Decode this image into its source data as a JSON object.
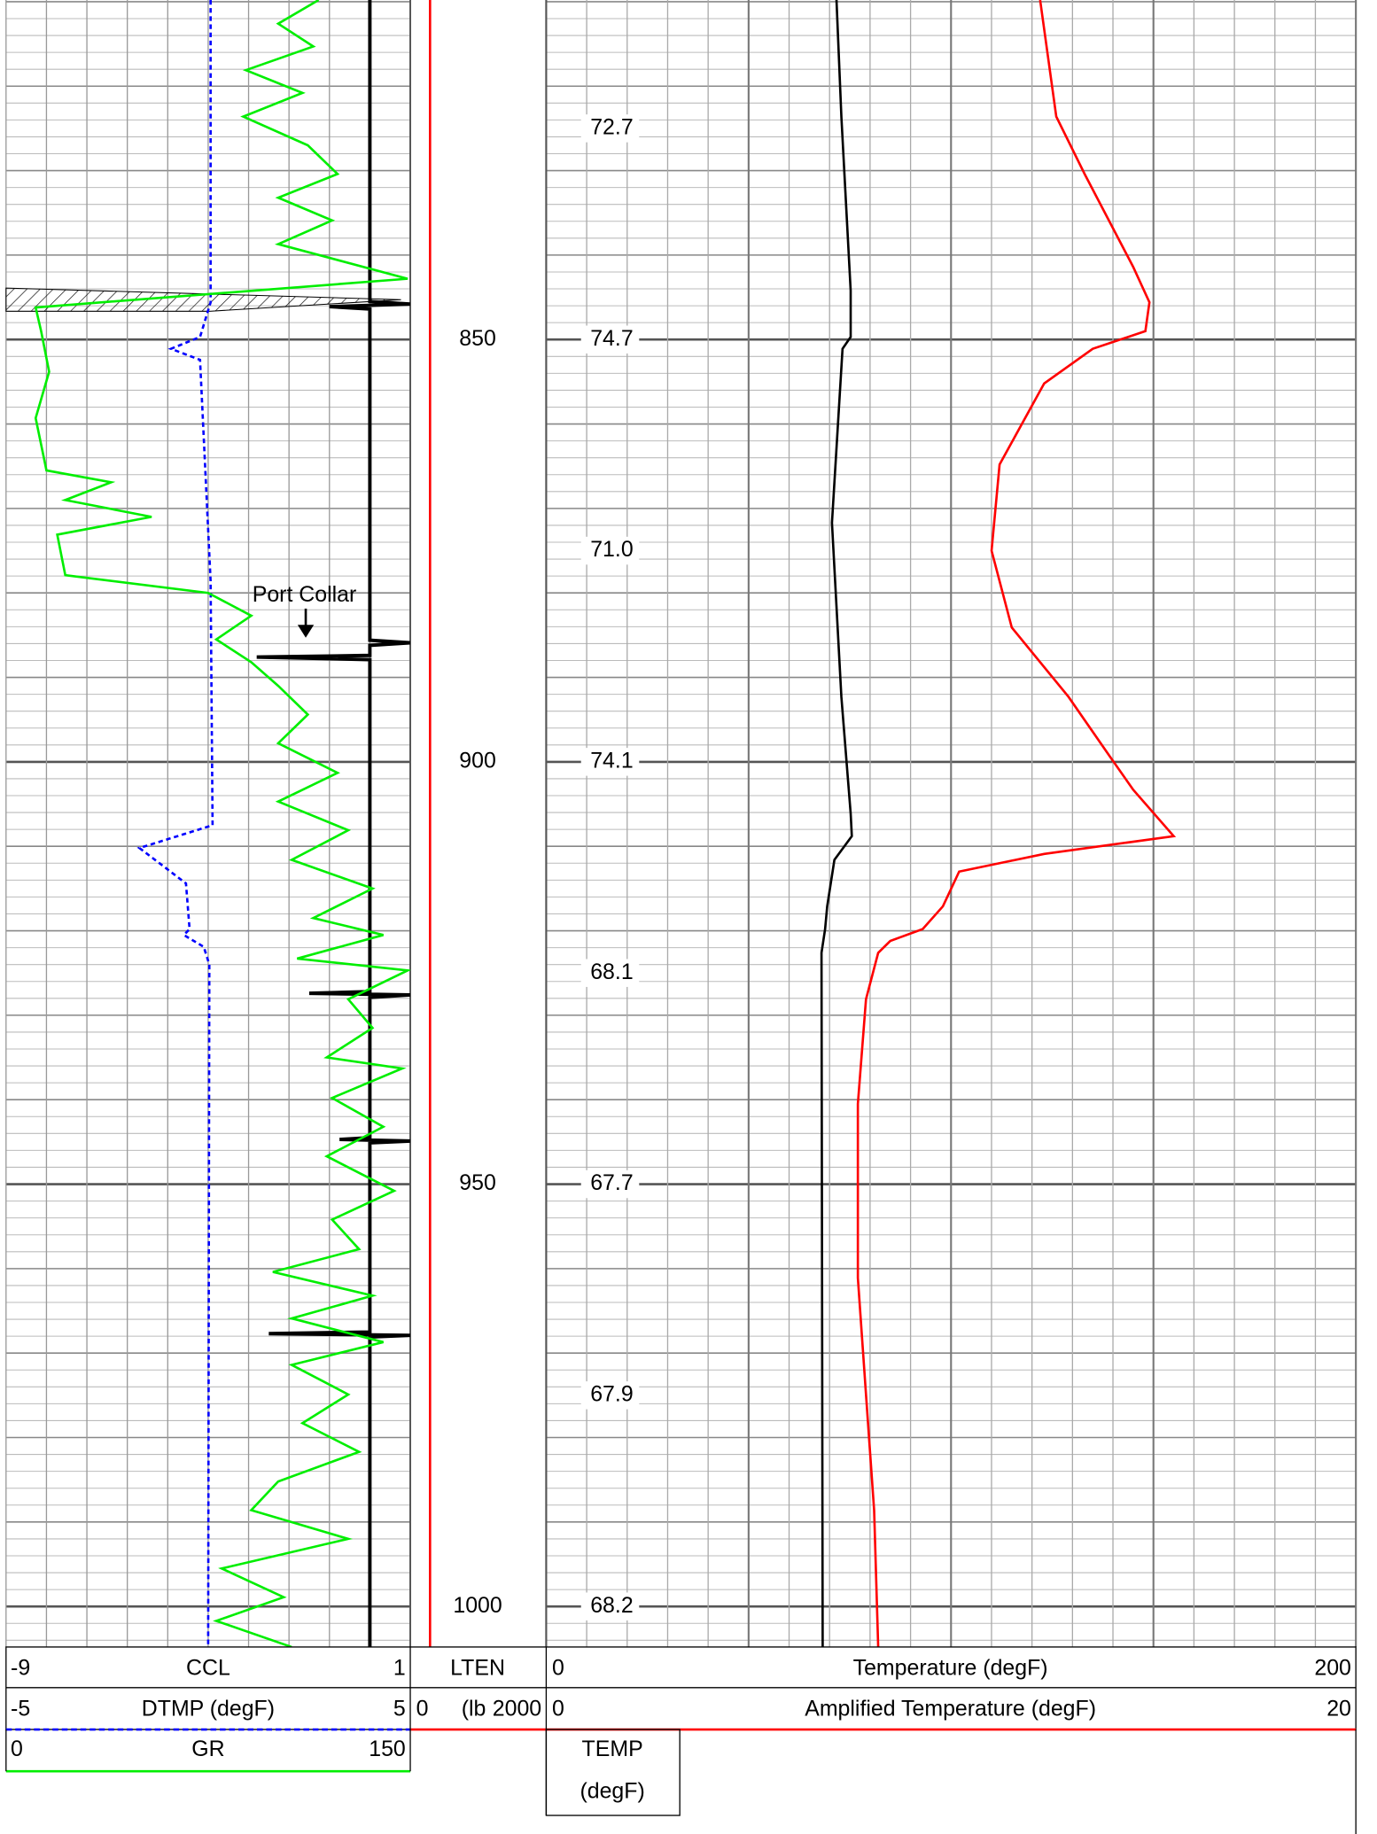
{
  "chart_data": {
    "type": "well-log",
    "depth_lim": [
      809.8,
      1004.8
    ],
    "depth_ticks": [
      850,
      900,
      950,
      1000
    ],
    "annotation": "Port Collar",
    "temperature_labels": {
      "depths": [
        825,
        850,
        875,
        900,
        925,
        950,
        975,
        1000
      ],
      "labels": [
        72.7,
        74.7,
        {
          "value": 71,
          "label": "71.0"
        },
        74.1,
        68.1,
        67.7,
        67.9,
        68.2
      ]
    },
    "temp_box": [
      "TEMP",
      "(degF)"
    ],
    "curves": [
      {
        "name": "CCL",
        "scale": [
          -9,
          1
        ],
        "color": "#000000",
        "depth": [
          809.8,
          845.5,
          845.8,
          846.1,
          846.4,
          885.6,
          885.9,
          886.2,
          887.4,
          887.6,
          887.9,
          927.2,
          927.4,
          927.6,
          927.9,
          944.5,
          944.7,
          944.9,
          945.1,
          967.5,
          967.7,
          967.9,
          968.1,
          1004.8
        ],
        "values": [
          0,
          0,
          1.0,
          -1.0,
          0,
          0,
          1.0,
          0,
          0,
          -2.8,
          0,
          0,
          -1.5,
          1.0,
          0,
          0,
          -0.75,
          1.0,
          0,
          0,
          -2.5,
          1.0,
          0,
          0
        ]
      },
      {
        "name": "DTMP (degF)",
        "scale": [
          -5,
          5
        ],
        "color": "#0000ff",
        "dashed": true,
        "depth": [
          809.8,
          845.6,
          849.7,
          851.1,
          852.4,
          878.6,
          907.5,
          910.2,
          912.3,
          914.4,
          919.8,
          920.5,
          921.9,
          924.0,
          1004.8
        ],
        "values": [
          0.06,
          0.06,
          -0.2,
          -0.92,
          -0.2,
          0.06,
          0.11,
          -1.7,
          -1.12,
          -0.55,
          -0.46,
          -0.6,
          -0.11,
          0.03,
          0
        ]
      },
      {
        "name": "GR",
        "scale": [
          0,
          150
        ],
        "color": "#00ee00",
        "depth": [
          809.8,
          812.6,
          815.3,
          818.1,
          820.8,
          823.6,
          827.0,
          830.4,
          833.2,
          835.9,
          838.7,
          842.8,
          846.2,
          849.0,
          853.8,
          859.3,
          865.5,
          866.9,
          869.0,
          871.0,
          873.1,
          877.9,
          880.0,
          882.7,
          885.5,
          888.2,
          891.0,
          894.4,
          897.8,
          901.3,
          904.7,
          908.1,
          911.6,
          915.0,
          918.5,
          920.5,
          923.3,
          924.7,
          928.1,
          931.5,
          935.0,
          936.3,
          939.8,
          943.2,
          946.7,
          950.8,
          954.2,
          957.7,
          960.4,
          963.2,
          965.9,
          968.7,
          971.4,
          974.9,
          978.3,
          981.7,
          985.2,
          988.6,
          992.0,
          995.5,
          998.9,
          1001.7,
          1004.8
        ],
        "values": [
          116,
          101,
          114,
          89,
          110,
          88,
          112,
          123,
          101,
          121,
          101,
          149,
          11,
          13,
          16,
          11,
          15,
          39,
          22,
          54,
          19,
          22,
          75,
          91,
          78,
          91,
          101,
          112,
          101,
          123,
          101,
          127,
          106,
          136,
          114,
          140,
          108,
          149,
          127,
          136,
          119,
          147,
          121,
          140,
          119,
          144,
          121,
          131,
          99,
          136,
          106,
          140,
          106,
          127,
          110,
          131,
          101,
          91,
          127,
          80,
          103,
          78,
          106
        ]
      },
      {
        "name": "LTEN",
        "unit": "(lb",
        "scale": [
          0,
          2000
        ],
        "color": "#ff0000",
        "depth": [
          809.8,
          1004.8
        ],
        "values": [
          290,
          290
        ]
      },
      {
        "name": "Temperature (degF)",
        "scale": [
          0,
          200
        ],
        "color": "#000000",
        "depth": [
          809.8,
          823.6,
          844.2,
          849.7,
          851.1,
          871.7,
          892.3,
          906.1,
          908.8,
          911.6,
          917.1,
          919.8,
          922.6,
          1004.8
        ],
        "values": [
          71.7,
          72.9,
          75.2,
          75.2,
          73.2,
          70.6,
          72.9,
          75.2,
          75.5,
          71.2,
          69.4,
          68.9,
          68.0,
          68.3
        ]
      },
      {
        "name": "Amplified Temperature (degF)",
        "scale": [
          0,
          20
        ],
        "color": "#ff0000",
        "depth": [
          809.8,
          823.6,
          830.4,
          841.4,
          845.6,
          849.0,
          851.1,
          855.2,
          864.8,
          875.0,
          884.1,
          892.3,
          899.2,
          903.3,
          908.8,
          910.9,
          913.0,
          917.1,
          919.8,
          921.2,
          922.6,
          928.1,
          940.5,
          950.1,
          961.1,
          974.9,
          988.6,
          1004.8
        ],
        "values": [
          12.2,
          12.6,
          13.3,
          14.5,
          14.9,
          14.8,
          13.5,
          12.3,
          11.2,
          11.0,
          11.5,
          12.9,
          13.9,
          14.5,
          15.5,
          12.3,
          10.2,
          9.8,
          9.3,
          8.5,
          8.2,
          7.9,
          7.7,
          7.7,
          7.7,
          7.9,
          8.1,
          8.2
        ]
      }
    ]
  }
}
